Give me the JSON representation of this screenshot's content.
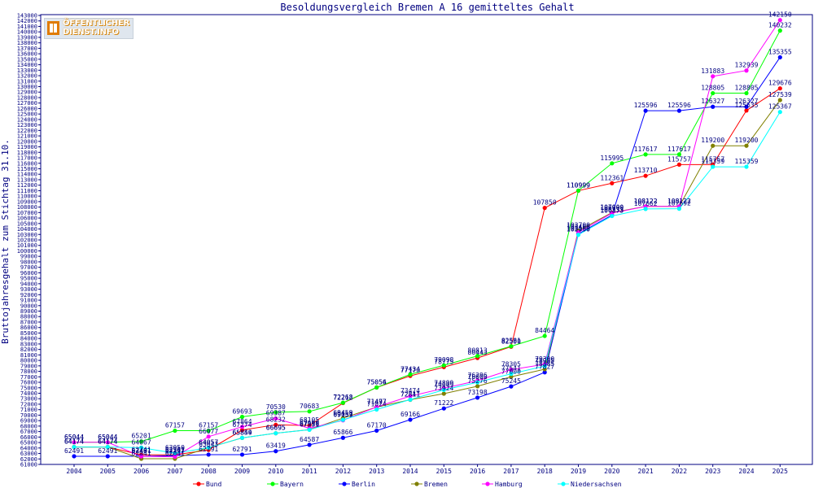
{
  "logo": {
    "line1": "ÖFFENTLICHER",
    "line2": "DIENST.INFO"
  },
  "colors": {
    "Bund": "#ff0000",
    "Bayern": "#00ff00",
    "Berlin": "#0000ff",
    "Bremen": "#808000",
    "Hamburg": "#ff00ff",
    "Niedersachsen": "#00ffff"
  },
  "chart_data": {
    "type": "line",
    "title": "Besoldungsvergleich Bremen A 16 gemitteltes Gehalt",
    "xlabel": "",
    "ylabel": "Bruttojahresgehalt zum Stichtag 31.10.",
    "ylim": [
      61000,
      143000
    ],
    "ytick_step": 1000,
    "grid": false,
    "legend_position": "bottom",
    "categories": [
      "2004",
      "2005",
      "2006",
      "2007",
      "2008",
      "2009",
      "2010",
      "2011",
      "2012",
      "2013",
      "2014",
      "2015",
      "2016",
      "2017",
      "2018",
      "2019",
      "2020",
      "2021",
      "2022",
      "2023",
      "2024",
      "2025"
    ],
    "series": [
      {
        "name": "Bund",
        "values": [
          64174,
          64174,
          62741,
          62741,
          63643,
          67274,
          68232,
          68105,
          72212,
          75056,
          77170,
          78775,
          80443,
          82500,
          107850,
          110999,
          112361,
          113710,
          115757,
          115757,
          125635,
          129676
        ]
      },
      {
        "name": "Bayern",
        "values": [
          65044,
          65044,
          65201,
          67157,
          67157,
          69693,
          70530,
          70683,
          72268,
          75054,
          77434,
          79098,
          80813,
          82581,
          84464,
          110999,
          115995,
          117617,
          117617,
          128805,
          128805,
          140232
        ]
      },
      {
        "name": "Berlin",
        "values": [
          62491,
          62491,
          62491,
          62597,
          62791,
          62791,
          63419,
          64587,
          65866,
          67170,
          69166,
          71222,
          73198,
          75245,
          77827,
          103100,
          106533,
          125596,
          125596,
          126327,
          126327,
          135355
        ]
      },
      {
        "name": "Bremen",
        "values": [
          64174,
          64174,
          62041,
          62041,
          64057,
          65849,
          66695,
          67356,
          69459,
          71477,
          72811,
          73924,
          75276,
          77000,
          78385,
          103700,
          107000,
          108122,
          108122,
          119200,
          119200,
          127539
        ]
      },
      {
        "name": "Hamburg",
        "values": [
          65044,
          65044,
          62461,
          62397,
          66077,
          67864,
          69387,
          67600,
          69059,
          71497,
          73474,
          74899,
          76296,
          78305,
          79300,
          103400,
          106900,
          108122,
          108122,
          131883,
          132939,
          142150
        ]
      },
      {
        "name": "Niedersachsen",
        "values": [
          64174,
          64174,
          64067,
          63050,
          64057,
          65854,
          66695,
          67331,
          69151,
          71024,
          72841,
          74609,
          76000,
          77541,
          78955,
          102950,
          106373,
          107662,
          107692,
          115359,
          115359,
          125367
        ]
      }
    ]
  }
}
